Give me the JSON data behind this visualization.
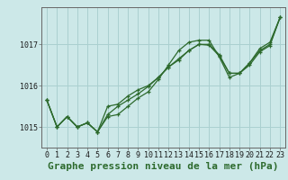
{
  "x": [
    0,
    1,
    2,
    3,
    4,
    5,
    6,
    7,
    8,
    9,
    10,
    11,
    12,
    13,
    14,
    15,
    16,
    17,
    18,
    19,
    20,
    21,
    22,
    23
  ],
  "series": [
    [
      1015.65,
      1015.0,
      1015.25,
      1015.0,
      1015.1,
      1014.88,
      1015.25,
      1015.3,
      1015.5,
      1015.7,
      1015.85,
      1016.15,
      1016.5,
      1016.85,
      1017.05,
      1017.1,
      1017.1,
      1016.7,
      1016.2,
      1016.3,
      1016.55,
      1016.9,
      1017.05,
      1017.65
    ],
    [
      1015.65,
      1015.0,
      1015.25,
      1015.0,
      1015.1,
      1014.88,
      1015.5,
      1015.55,
      1015.75,
      1015.9,
      1016.0,
      1016.2,
      1016.45,
      1016.65,
      1016.85,
      1017.0,
      1017.0,
      1016.75,
      1016.3,
      1016.3,
      1016.55,
      1016.85,
      1017.0,
      1017.65
    ],
    [
      1015.65,
      1015.0,
      1015.25,
      1015.0,
      1015.1,
      1014.88,
      1015.3,
      1015.5,
      1015.65,
      1015.8,
      1015.98,
      1016.2,
      1016.45,
      1016.62,
      1016.85,
      1017.0,
      1016.98,
      1016.72,
      1016.3,
      1016.3,
      1016.5,
      1016.82,
      1016.97,
      1017.65
    ]
  ],
  "line_color": "#2d6a2d",
  "marker": "+",
  "bg_color": "#cce8e8",
  "grid_color": "#aad0d0",
  "title": "Graphe pression niveau de la mer (hPa)",
  "ylabel_values": [
    1015,
    1016,
    1017
  ],
  "ylim": [
    1014.5,
    1017.9
  ],
  "xlim": [
    -0.5,
    23.5
  ],
  "title_fontsize": 8,
  "tick_fontsize": 6
}
